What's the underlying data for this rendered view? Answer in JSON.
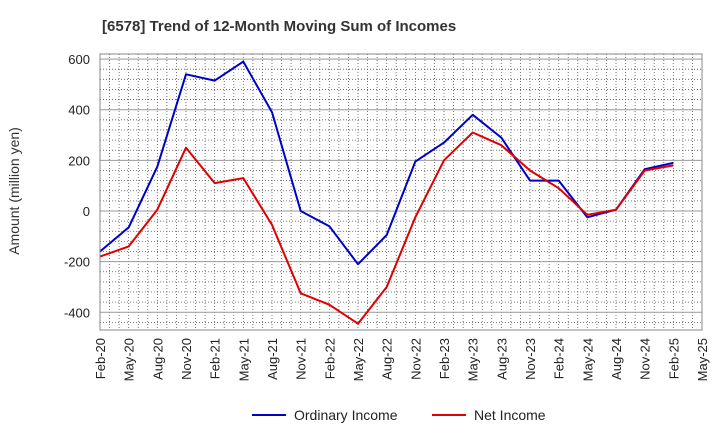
{
  "chart_data": {
    "type": "line",
    "title": "[6578]  Trend of 12-Month Moving Sum of Incomes",
    "ylabel": "Amount (million yen)",
    "xlabel": "",
    "ylim": [
      -470,
      620
    ],
    "yticks": [
      -400,
      -200,
      0,
      200,
      400,
      600
    ],
    "grid": true,
    "legend_position": "bottom-center",
    "categories": [
      "Feb-20",
      "May-20",
      "Aug-20",
      "Nov-20",
      "Feb-21",
      "May-21",
      "Aug-21",
      "Nov-21",
      "Feb-22",
      "May-22",
      "Aug-22",
      "Nov-22",
      "Feb-23",
      "May-23",
      "Aug-23",
      "Nov-23",
      "Feb-24",
      "May-24",
      "Aug-24",
      "Nov-24",
      "Feb-25",
      "May-25"
    ],
    "series": [
      {
        "name": "Ordinary Income",
        "color": "#0000cc",
        "values": [
          -160,
          -65,
          175,
          540,
          515,
          590,
          390,
          0,
          -60,
          -210,
          -95,
          195,
          270,
          380,
          290,
          120,
          120,
          -25,
          5,
          165,
          190,
          null
        ]
      },
      {
        "name": "Net Income",
        "color": "#e00000",
        "values": [
          -180,
          -140,
          5,
          250,
          110,
          130,
          -55,
          -325,
          -370,
          -445,
          -300,
          -25,
          200,
          310,
          260,
          160,
          90,
          -15,
          5,
          160,
          180,
          null
        ]
      }
    ]
  }
}
